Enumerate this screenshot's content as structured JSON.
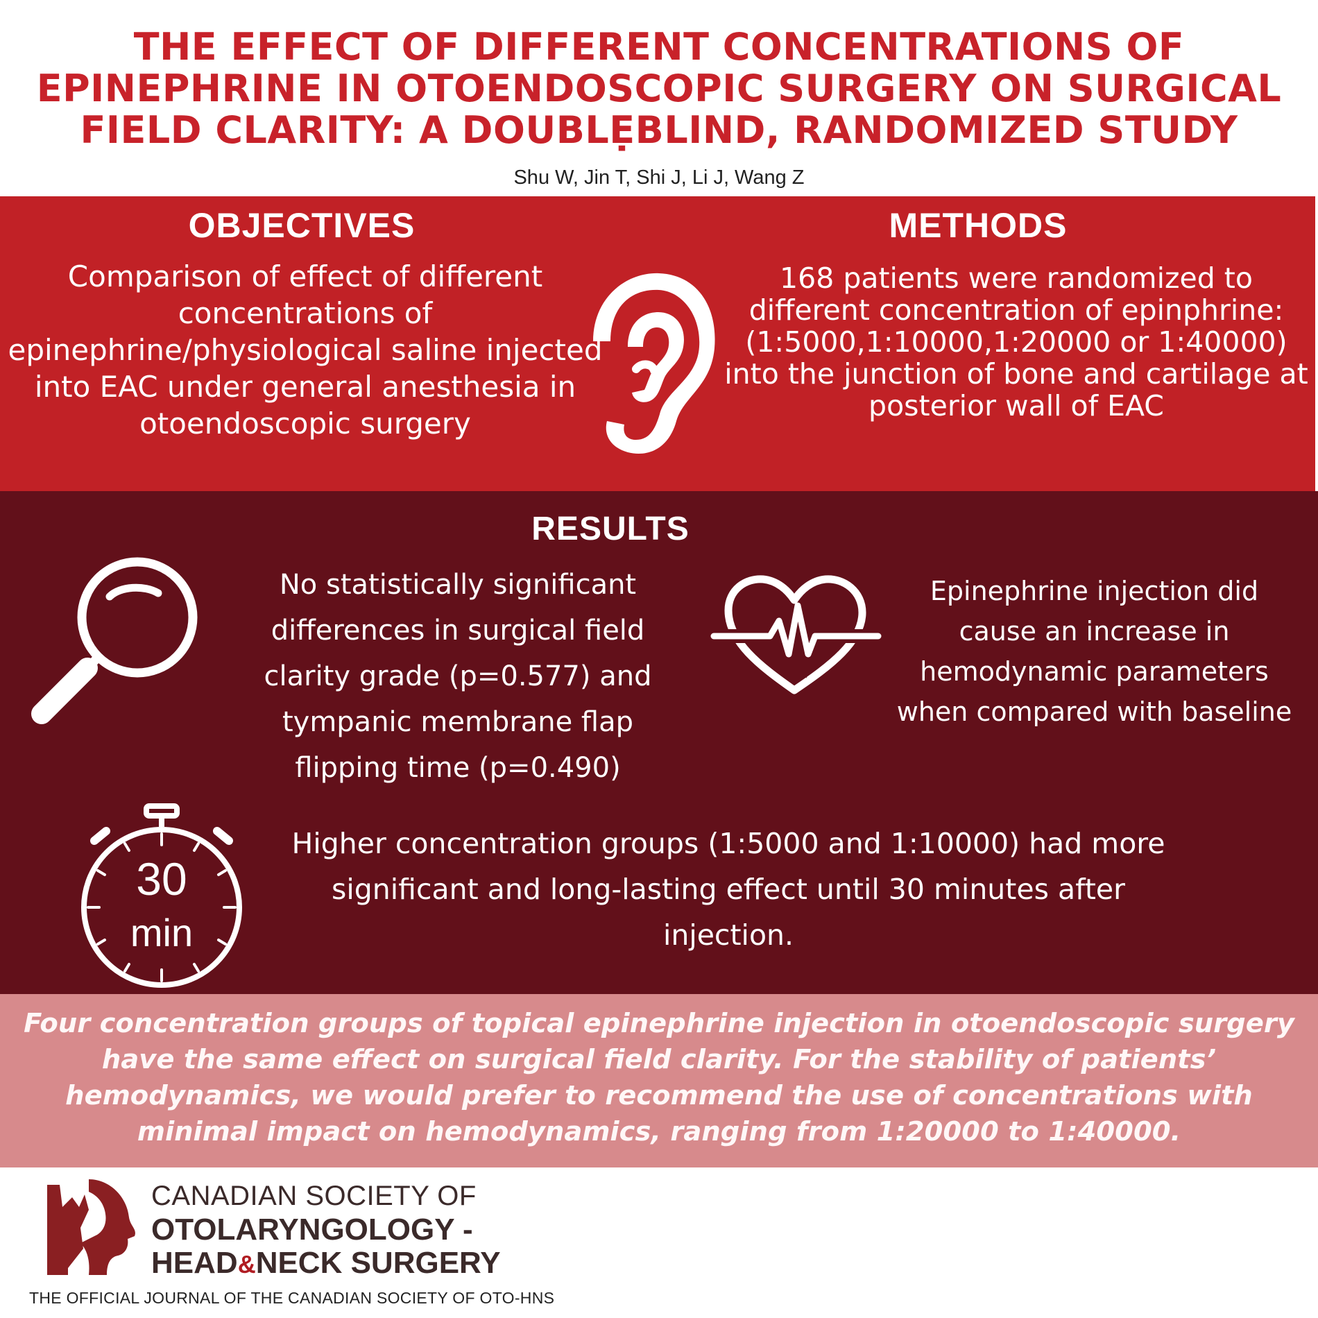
{
  "title": {
    "line1": "THE EFFECT OF DIFFERENT CONCENTRATIONS OF",
    "line2": "EPINEPHRINE IN OTOENDOSCOPIC SURGERY ON SURGICAL",
    "line3": "FIELD CLARITY: A DOUBLẸBLIND, RANDOMIZED STUDY"
  },
  "authors": "Shu W, Jin T, Shi J, Li J, Wang Z",
  "objectives": {
    "heading": "OBJECTIVES",
    "text": "Comparison of effect of different concentrations of epinephrine/physiological saline injected into EAC under general anesthesia in otoendoscopic surgery"
  },
  "methods": {
    "heading": "METHODS",
    "text": "168 patients were randomized to different concentration of epinphrine: (1:5000,1:10000,1:20000 or 1:40000) into the junction of bone and cartilage at posterior wall of EAC"
  },
  "results": {
    "heading": "RESULTS",
    "finding1": "No statistically significant differences in surgical field clarity grade (p=0.577) and tympanic membrane flap flipping time (p=0.490)",
    "finding2": "Epinephrine injection did cause an increase in hemodynamic parameters when compared with baseline",
    "finding3": "Higher concentration groups (1:5000 and 1:10000) had more significant and long-lasting effect until 30 minutes after injection.",
    "timer_value": "30",
    "timer_unit": "min"
  },
  "conclusion": "Four concentration groups of topical epinephrine injection in otoendoscopic surgery have the same effect on surgical field clarity. For the stability of patients’ hemodynamics, we would prefer to recommend the use of concentrations with minimal impact on hemodynamics, ranging from 1:20000 to 1:40000.",
  "footer": {
    "org_line1": "CANADIAN SOCIETY OF",
    "org_line2": "OTOLARYNGOLOGY -",
    "org_line3_a": "HEAD",
    "org_line3_amp": "&",
    "org_line3_b": "NECK SURGERY",
    "journal": "THE OFFICIAL JOURNAL OF THE CANADIAN SOCIETY OF OTO-HNS"
  },
  "icons": [
    "ear-icon",
    "magnifier-icon",
    "heartbeat-icon",
    "stopwatch-icon",
    "society-logo"
  ],
  "colors": {
    "title_red": "#c8222a",
    "band_red": "#c12126",
    "results_maroon": "#62101a",
    "conclusion_pink": "#d78a8c"
  }
}
